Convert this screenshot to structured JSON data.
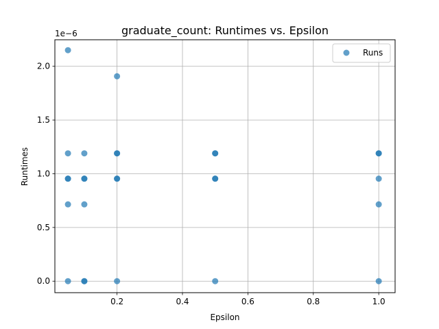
{
  "chart_data": {
    "type": "scatter",
    "title": "graduate_count: Runtimes vs. Epsilon",
    "xlabel": "Epsilon",
    "ylabel": "Runtimes",
    "y_offset_text": "1e−6",
    "y_scale_factor": 1e-06,
    "xlim": [
      0.01,
      1.05
    ],
    "ylim": [
      -0.107,
      2.247
    ],
    "xticks": [
      0.2,
      0.4,
      0.6,
      0.8,
      1.0
    ],
    "xtick_labels": [
      "0.2",
      "0.4",
      "0.6",
      "0.8",
      "1.0"
    ],
    "yticks": [
      0.0,
      0.5,
      1.0,
      1.5,
      2.0
    ],
    "ytick_labels": [
      "0.0",
      "0.5",
      "1.0",
      "1.5",
      "2.0"
    ],
    "grid": true,
    "legend_position": "top-right",
    "series": [
      {
        "name": "Runs",
        "color": "#1f77b4",
        "x": [
          0.05,
          0.05,
          0.05,
          0.05,
          0.05,
          0.05,
          0.1,
          0.1,
          0.1,
          0.1,
          0.1,
          0.1,
          0.2,
          0.2,
          0.2,
          0.2,
          0.2,
          0.2,
          0.5,
          0.5,
          0.5,
          0.5,
          0.5,
          1.0,
          1.0,
          1.0,
          1.0,
          1.0
        ],
        "y": [
          2.15,
          1.19,
          0.954,
          0.954,
          0.715,
          0.0,
          1.19,
          0.954,
          0.954,
          0.715,
          0.0,
          0.0,
          1.907,
          1.19,
          1.19,
          0.954,
          0.954,
          0.0,
          1.19,
          1.19,
          0.954,
          0.954,
          0.0,
          1.19,
          1.19,
          0.954,
          0.715,
          0.0
        ]
      }
    ]
  }
}
